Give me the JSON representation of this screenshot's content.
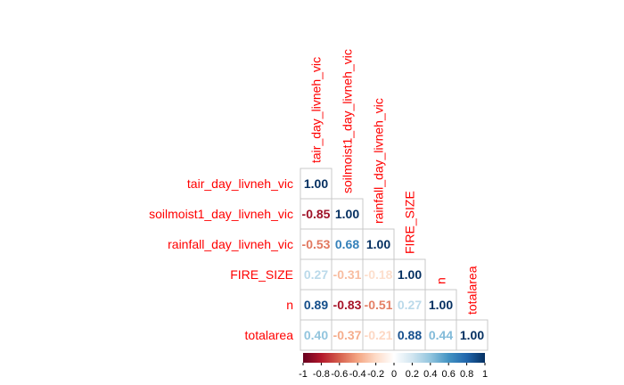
{
  "chart_data": {
    "type": "heatmap",
    "variables": [
      "tair_day_livneh_vic",
      "soilmoist1_day_livneh_vic",
      "rainfall_day_livneh_vic",
      "FIRE_SIZE",
      "n",
      "totalarea"
    ],
    "matrix": [
      [
        1.0,
        null,
        null,
        null,
        null,
        null
      ],
      [
        -0.85,
        1.0,
        null,
        null,
        null,
        null
      ],
      [
        -0.53,
        0.68,
        1.0,
        null,
        null,
        null
      ],
      [
        0.27,
        -0.31,
        -0.18,
        1.0,
        null,
        null
      ],
      [
        0.89,
        -0.83,
        -0.51,
        0.27,
        1.0,
        null
      ],
      [
        0.4,
        -0.37,
        -0.21,
        0.88,
        0.44,
        1.0
      ]
    ],
    "value_labels": [
      [
        "1.00"
      ],
      [
        "-0.85",
        "1.00"
      ],
      [
        "-0.53",
        "0.68",
        "1.00"
      ],
      [
        "0.27",
        "-0.31",
        "-0.18",
        "1.00"
      ],
      [
        "0.89",
        "-0.83",
        "-0.51",
        "0.27",
        "1.00"
      ],
      [
        "0.40",
        "-0.37",
        "-0.21",
        "0.88",
        "0.44",
        "1.00"
      ]
    ],
    "layout": "lower-triangle",
    "label_color": "#ff0000",
    "colorbar": {
      "range": [
        -1,
        1
      ],
      "ticks": [
        "-1",
        "-0.8",
        "-0.6",
        "-0.4",
        "-0.2",
        "0",
        "0.2",
        "0.4",
        "0.6",
        "0.8",
        "1"
      ],
      "tick_values": [
        -1,
        -0.8,
        -0.6,
        -0.4,
        -0.2,
        0,
        0.2,
        0.4,
        0.6,
        0.8,
        1
      ],
      "colors": [
        "#67001f",
        "#b2182b",
        "#d6604d",
        "#f4a582",
        "#fddbc7",
        "#ffffff",
        "#d1e5f0",
        "#92c5de",
        "#4393c3",
        "#2166ac",
        "#053061"
      ],
      "placement": "bottom"
    }
  }
}
